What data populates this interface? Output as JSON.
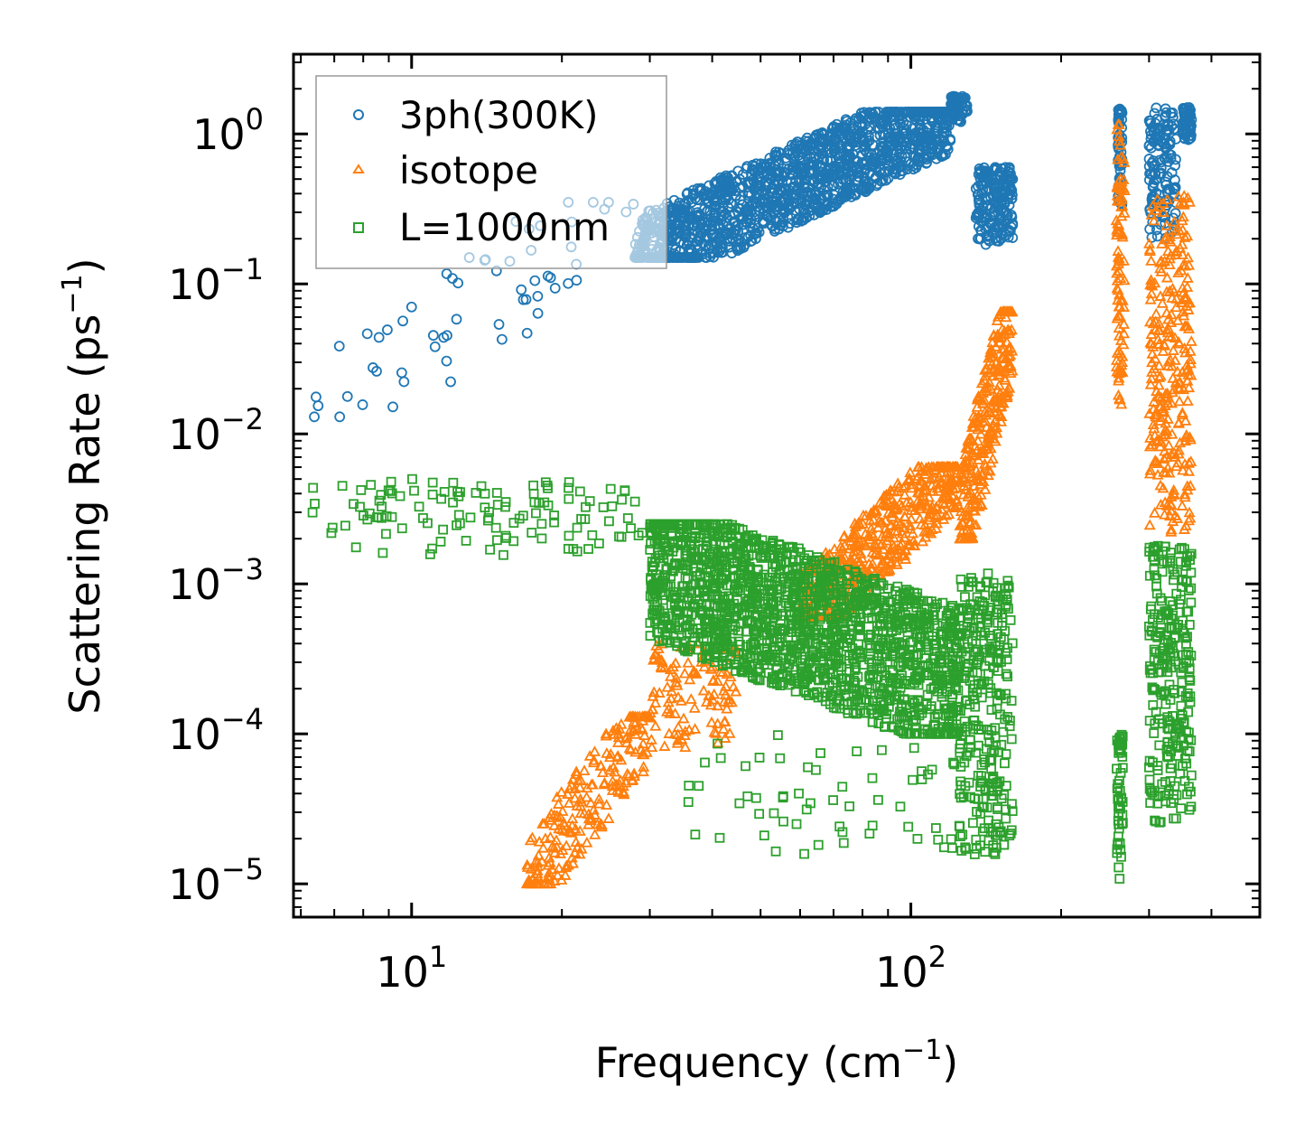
{
  "chart_data": {
    "type": "scatter",
    "xscale": "log",
    "yscale": "log",
    "xlabel": "Frequency (cm",
    "xlabel_sup": "−1",
    "xlabel_end": ")",
    "ylabel": "Scattering Rate (ps",
    "ylabel_sup": "−1",
    "ylabel_end": ")",
    "xlim": [
      5.8,
      500
    ],
    "ylim": [
      6e-06,
      3.4
    ],
    "x_ticks": [
      {
        "value": 10,
        "base": "10",
        "exp": "1"
      },
      {
        "value": 100,
        "base": "10",
        "exp": "2"
      }
    ],
    "y_ticks": [
      {
        "value": 1,
        "base": "10",
        "exp": "0"
      },
      {
        "value": 0.1,
        "base": "10",
        "exp": "−1"
      },
      {
        "value": 0.01,
        "base": "10",
        "exp": "−2"
      },
      {
        "value": 0.001,
        "base": "10",
        "exp": "−3"
      },
      {
        "value": 0.0001,
        "base": "10",
        "exp": "−4"
      },
      {
        "value": 1e-05,
        "base": "10",
        "exp": "−5"
      }
    ],
    "legend_position": "top-left",
    "series": [
      {
        "name": "3ph(300K)",
        "marker": "circle",
        "color": "#1f77b4",
        "clusters": [
          {
            "x": [
              6.3,
              28
            ],
            "y": [
              0.013,
              0.35
            ],
            "trend": "rising",
            "n": 60
          },
          {
            "x": [
              28,
              120
            ],
            "y": [
              0.15,
              1.4
            ],
            "trend": "rising",
            "n": 1500
          },
          {
            "x": [
              120,
              130
            ],
            "y": [
              1.2,
              1.8
            ],
            "n": 60
          },
          {
            "x": [
              135,
              160
            ],
            "y": [
              0.18,
              0.6
            ],
            "n": 200
          },
          {
            "x": [
              260,
              265
            ],
            "y": [
              0.3,
              1.5
            ],
            "n": 60
          },
          {
            "x": [
              300,
              340
            ],
            "y": [
              0.2,
              1.5
            ],
            "n": 140
          },
          {
            "x": [
              350,
              365
            ],
            "y": [
              0.9,
              1.5
            ],
            "n": 60
          }
        ]
      },
      {
        "name": "isotope",
        "marker": "triangle",
        "color": "#ff7f0e",
        "clusters": [
          {
            "x": [
              17,
              30
            ],
            "y": [
              1e-05,
              0.00013
            ],
            "trend": "rising",
            "n": 220
          },
          {
            "x": [
              30,
              45
            ],
            "y": [
              8e-05,
              0.0004
            ],
            "n": 120
          },
          {
            "x": [
              60,
              125
            ],
            "y": [
              0.0006,
              0.006
            ],
            "trend": "rising",
            "n": 500
          },
          {
            "x": [
              125,
              160
            ],
            "y": [
              0.002,
              0.065
            ],
            "trend": "rising",
            "n": 300
          },
          {
            "x": [
              258,
              268
            ],
            "y": [
              0.013,
              1.2
            ],
            "n": 90
          },
          {
            "x": [
              300,
              365
            ],
            "y": [
              0.002,
              0.4
            ],
            "n": 280
          }
        ]
      },
      {
        "name": "L=1000nm",
        "marker": "square",
        "color": "#2ca02c",
        "clusters": [
          {
            "x": [
              6.3,
              30
            ],
            "y": [
              0.0015,
              0.005
            ],
            "n": 120
          },
          {
            "x": [
              30,
              125
            ],
            "y": [
              0.0001,
              0.0025
            ],
            "trend": "falling",
            "n": 1800
          },
          {
            "x": [
              35,
              130
            ],
            "y": [
              1.3e-05,
              0.0001
            ],
            "n": 60
          },
          {
            "x": [
              125,
              160
            ],
            "y": [
              1.4e-05,
              0.0012
            ],
            "n": 300
          },
          {
            "x": [
              258,
              266
            ],
            "y": [
              1e-05,
              0.0001
            ],
            "n": 50
          },
          {
            "x": [
              300,
              365
            ],
            "y": [
              2.5e-05,
              0.0018
            ],
            "n": 260
          }
        ]
      }
    ]
  }
}
